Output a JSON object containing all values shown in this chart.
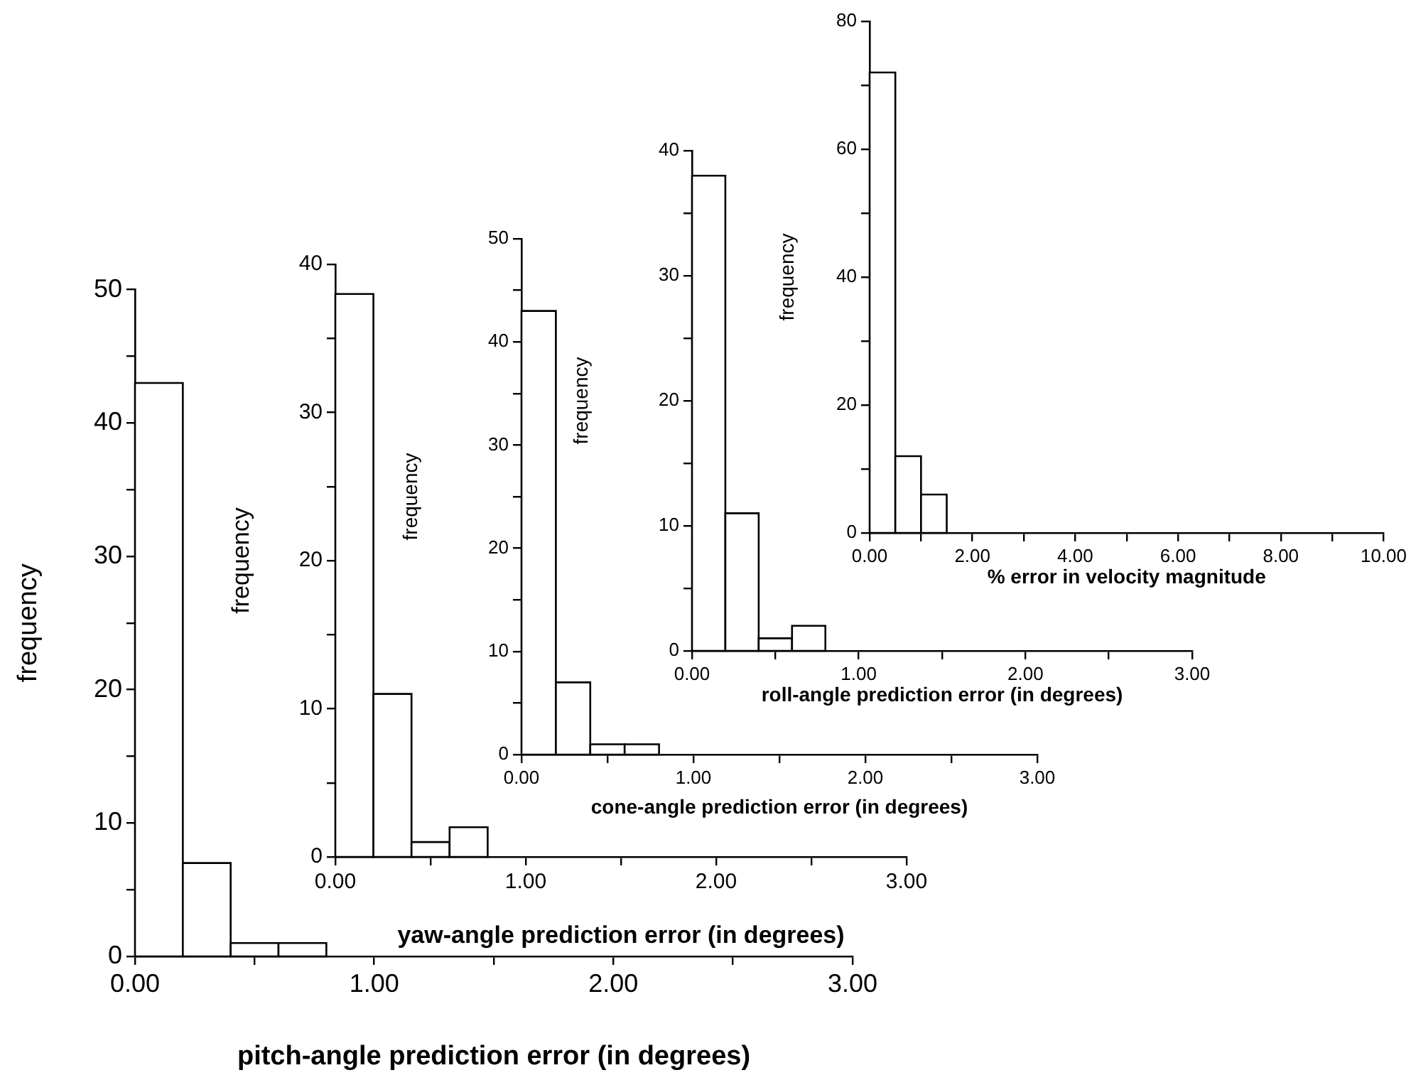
{
  "chart_data": [
    {
      "type": "histogram",
      "xlabel": "pitch-angle prediction error (in degrees)",
      "ylabel": "frequency",
      "bins": [
        0,
        0.2,
        0.4,
        0.6,
        0.8
      ],
      "values": [
        43,
        7,
        1,
        1
      ],
      "color": "#ffffff",
      "xlim": [
        0,
        3
      ],
      "xticks": [
        {
          "value": 0,
          "label": "0.00"
        },
        {
          "value": 0.5,
          "label": null
        },
        {
          "value": 1,
          "label": "1.00"
        },
        {
          "value": 1.5,
          "label": null
        },
        {
          "value": 2,
          "label": "2.00"
        },
        {
          "value": 2.5,
          "label": null
        },
        {
          "value": 3,
          "label": "3.00"
        }
      ],
      "ylim": [
        0,
        50
      ],
      "yticks": [
        0,
        {
          "value": 5,
          "label": null
        },
        10,
        {
          "value": 15,
          "label": null
        },
        20,
        {
          "value": 25,
          "label": null
        },
        30,
        {
          "value": 35,
          "label": null
        },
        40,
        {
          "value": 45,
          "label": null
        },
        50
      ]
    },
    {
      "type": "histogram",
      "xlabel": "yaw-angle prediction error (in degrees)",
      "ylabel": "frequency",
      "bins": [
        0,
        0.2,
        0.4,
        0.6,
        0.8
      ],
      "values": [
        38,
        11,
        1,
        2
      ],
      "color": "#ffffff",
      "xlim": [
        0,
        3
      ],
      "xticks": [
        {
          "value": 0,
          "label": "0.00"
        },
        {
          "value": 0.5,
          "label": null
        },
        {
          "value": 1,
          "label": "1.00"
        },
        {
          "value": 1.5,
          "label": null
        },
        {
          "value": 2,
          "label": "2.00"
        },
        {
          "value": 2.5,
          "label": null
        },
        {
          "value": 3,
          "label": "3.00"
        }
      ],
      "ylim": [
        0,
        40
      ],
      "yticks": [
        0,
        {
          "value": 5,
          "label": null
        },
        10,
        {
          "value": 15,
          "label": null
        },
        20,
        {
          "value": 25,
          "label": null
        },
        30,
        {
          "value": 35,
          "label": null
        },
        40
      ]
    },
    {
      "type": "histogram",
      "xlabel": "cone-angle prediction error (in degrees)",
      "ylabel": "frequency",
      "bins": [
        0,
        0.2,
        0.4,
        0.6,
        0.8
      ],
      "values": [
        43,
        7,
        1,
        1
      ],
      "color": "#ffffff",
      "xlim": [
        0,
        3
      ],
      "xticks": [
        {
          "value": 0,
          "label": "0.00"
        },
        {
          "value": 0.5,
          "label": null
        },
        {
          "value": 1,
          "label": "1.00"
        },
        {
          "value": 1.5,
          "label": null
        },
        {
          "value": 2,
          "label": "2.00"
        },
        {
          "value": 2.5,
          "label": null
        },
        {
          "value": 3,
          "label": "3.00"
        }
      ],
      "ylim": [
        0,
        50
      ],
      "yticks": [
        0,
        {
          "value": 5,
          "label": null
        },
        10,
        {
          "value": 15,
          "label": null
        },
        20,
        {
          "value": 25,
          "label": null
        },
        30,
        {
          "value": 35,
          "label": null
        },
        40,
        {
          "value": 45,
          "label": null
        },
        50
      ]
    },
    {
      "type": "histogram",
      "xlabel": "roll-angle prediction error (in degrees)",
      "ylabel": "frequency",
      "bins": [
        0,
        0.2,
        0.4,
        0.6,
        0.8
      ],
      "values": [
        38,
        11,
        1,
        2
      ],
      "color": "#ffffff",
      "xlim": [
        0,
        3
      ],
      "xticks": [
        {
          "value": 0,
          "label": "0.00"
        },
        {
          "value": 0.5,
          "label": null
        },
        {
          "value": 1,
          "label": "1.00"
        },
        {
          "value": 1.5,
          "label": null
        },
        {
          "value": 2,
          "label": "2.00"
        },
        {
          "value": 2.5,
          "label": null
        },
        {
          "value": 3,
          "label": "3.00"
        }
      ],
      "ylim": [
        0,
        40
      ],
      "yticks": [
        0,
        {
          "value": 5,
          "label": null
        },
        10,
        {
          "value": 15,
          "label": null
        },
        20,
        {
          "value": 25,
          "label": null
        },
        30,
        {
          "value": 35,
          "label": null
        },
        40
      ]
    },
    {
      "type": "histogram",
      "xlabel": "% error in velocity magnitude",
      "ylabel": "frequency",
      "bins": [
        0,
        0.5,
        1,
        1.5
      ],
      "values": [
        72,
        12,
        6
      ],
      "color": "#ffffff",
      "xlim": [
        0,
        10
      ],
      "xticks": [
        {
          "value": 0,
          "label": "0.00"
        },
        {
          "value": 1,
          "label": null
        },
        {
          "value": 2,
          "label": "2.00"
        },
        {
          "value": 3,
          "label": null
        },
        {
          "value": 4,
          "label": "4.00"
        },
        {
          "value": 5,
          "label": null
        },
        {
          "value": 6,
          "label": "6.00"
        },
        {
          "value": 7,
          "label": null
        },
        {
          "value": 8,
          "label": "8.00"
        },
        {
          "value": 9,
          "label": null
        },
        {
          "value": 10,
          "label": "10.00"
        }
      ],
      "ylim": [
        0,
        80
      ],
      "yticks": [
        0,
        {
          "value": 10,
          "label": null
        },
        20,
        {
          "value": 30,
          "label": null
        },
        40,
        {
          "value": 50,
          "label": null
        },
        60,
        {
          "value": 70,
          "label": null
        },
        80
      ]
    }
  ]
}
